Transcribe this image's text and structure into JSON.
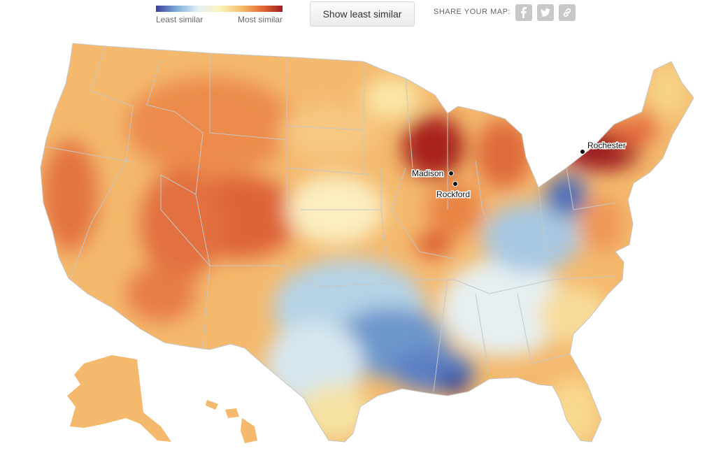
{
  "legend": {
    "least_label": "Least similar",
    "most_label": "Most similar",
    "colors": [
      "#3b3f9c",
      "#7fb0d9",
      "#e3f0f5",
      "#fbf4c0",
      "#f6c26b",
      "#e66d35",
      "#a11d22"
    ]
  },
  "toggle_button": {
    "label": "Show least similar"
  },
  "share": {
    "label": "SHARE YOUR MAP:",
    "icons": [
      "facebook-icon",
      "twitter-icon",
      "link-icon"
    ]
  },
  "cities": {
    "madison": "Madison",
    "rockford": "Rockford",
    "rochester": "Rochester"
  }
}
